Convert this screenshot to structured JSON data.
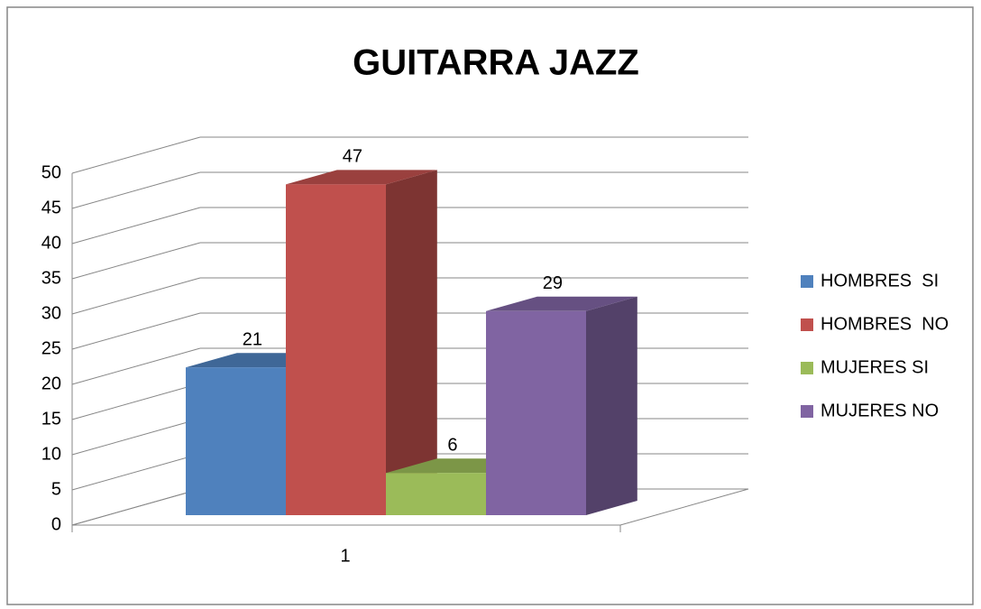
{
  "chart_data": {
    "type": "bar3d",
    "title": "GUITARRA JAZZ",
    "categories": [
      "1"
    ],
    "series": [
      {
        "name": "HOMBRES  SI",
        "color": "#4f81bd",
        "values": [
          21
        ]
      },
      {
        "name": "HOMBRES  NO",
        "color": "#c0504d",
        "values": [
          47
        ]
      },
      {
        "name": "MUJERES SI",
        "color": "#9bbb59",
        "values": [
          6
        ]
      },
      {
        "name": "MUJERES NO",
        "color": "#8064a2",
        "values": [
          29
        ]
      }
    ],
    "ylim": [
      0,
      50
    ],
    "yticks": [
      0,
      5,
      10,
      15,
      20,
      25,
      30,
      35,
      40,
      45,
      50
    ],
    "grid": true,
    "legend": "right"
  }
}
